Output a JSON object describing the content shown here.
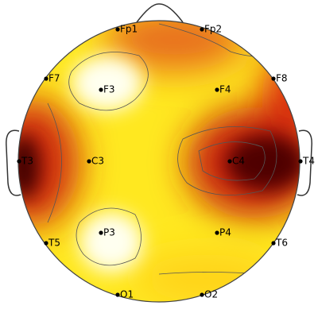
{
  "nodes": [
    {
      "label": "Fp1"
    },
    {
      "label": "Fp2"
    },
    {
      "label": "F7"
    },
    {
      "label": "F3"
    },
    {
      "label": "F4"
    },
    {
      "label": "F8"
    },
    {
      "label": "T3"
    },
    {
      "label": "C3"
    },
    {
      "label": "C4"
    },
    {
      "label": "T4"
    },
    {
      "label": "T5"
    },
    {
      "label": "P3"
    },
    {
      "label": "P4"
    },
    {
      "label": "T6"
    },
    {
      "label": "O1"
    },
    {
      "label": "O2"
    }
  ]
}
